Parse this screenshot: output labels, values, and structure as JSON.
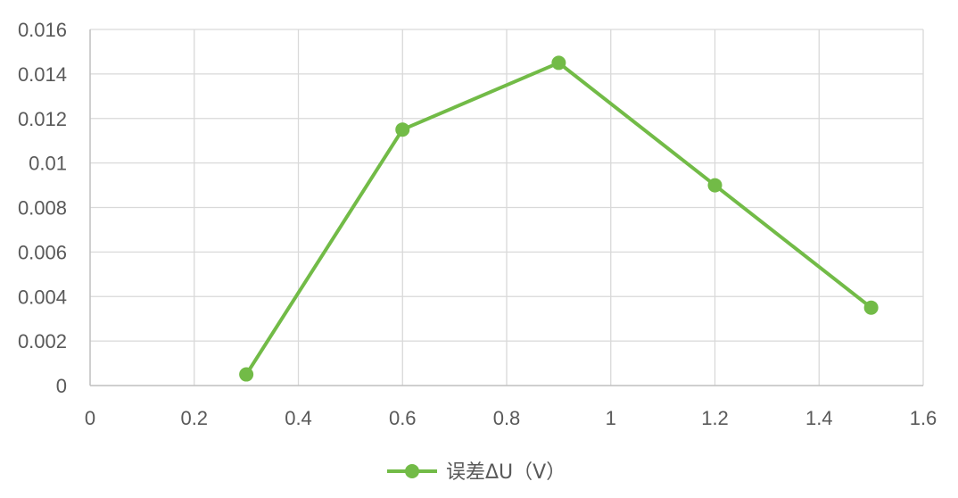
{
  "chart_data": {
    "type": "scatter",
    "mode": "lines+markers",
    "series": [
      {
        "name": "误差ΔU（V）",
        "color": "#72bb47",
        "x": [
          0.3,
          0.6,
          0.9,
          1.2,
          1.5
        ],
        "y": [
          0.0005,
          0.0115,
          0.0145,
          0.009,
          0.0035
        ]
      }
    ],
    "xlim": [
      0,
      1.6
    ],
    "ylim": [
      0,
      0.016
    ],
    "x_ticks": [
      "0",
      "0.2",
      "0.4",
      "0.6",
      "0.8",
      "1",
      "1.2",
      "1.4",
      "1.6"
    ],
    "y_ticks": [
      "0",
      "0.002",
      "0.004",
      "0.006",
      "0.008",
      "0.01",
      "0.012",
      "0.014",
      "0.016"
    ],
    "grid": true,
    "legend": "bottom-center",
    "grid_color": "#d9d9d9",
    "axis_color": "#bfbfbf",
    "text_color": "#595959"
  }
}
